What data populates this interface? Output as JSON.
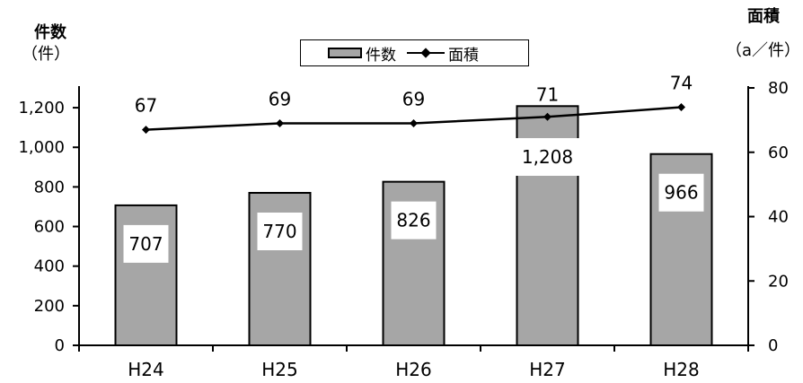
{
  "left_axis_title": "件数",
  "left_axis_unit": "（件）",
  "right_axis_title": "面積",
  "right_axis_unit": "（a／件）",
  "legend": {
    "bar_label": "件数",
    "line_label": "面積"
  },
  "colors": {
    "bar_fill": "#a6a6a6",
    "line": "#000000",
    "label_box": "#ffffff"
  },
  "chart_data": {
    "type": "bar",
    "categories": [
      "H24",
      "H25",
      "H26",
      "H27",
      "H28"
    ],
    "series": [
      {
        "name": "件数",
        "type": "bar",
        "axis": "left",
        "values": [
          707,
          770,
          826,
          1208,
          966
        ],
        "labels": [
          "707",
          "770",
          "826",
          "1,208",
          "966"
        ]
      },
      {
        "name": "面積",
        "type": "line",
        "axis": "right",
        "values": [
          67,
          69,
          69,
          71,
          74
        ],
        "labels": [
          "67",
          "69",
          "69",
          "71",
          "74"
        ]
      }
    ],
    "left_axis": {
      "ylim": [
        0,
        1300
      ],
      "ticks": [
        0,
        200,
        400,
        600,
        800,
        1000,
        1200
      ],
      "tick_labels": [
        "0",
        "200",
        "400",
        "600",
        "800",
        "1,000",
        "1,200"
      ]
    },
    "right_axis": {
      "ylim": [
        0,
        80
      ],
      "ticks": [
        0,
        20,
        40,
        60,
        80
      ],
      "tick_labels": [
        "0",
        "20",
        "40",
        "60",
        "80"
      ]
    },
    "legend_position": "top-center",
    "grid": false
  }
}
